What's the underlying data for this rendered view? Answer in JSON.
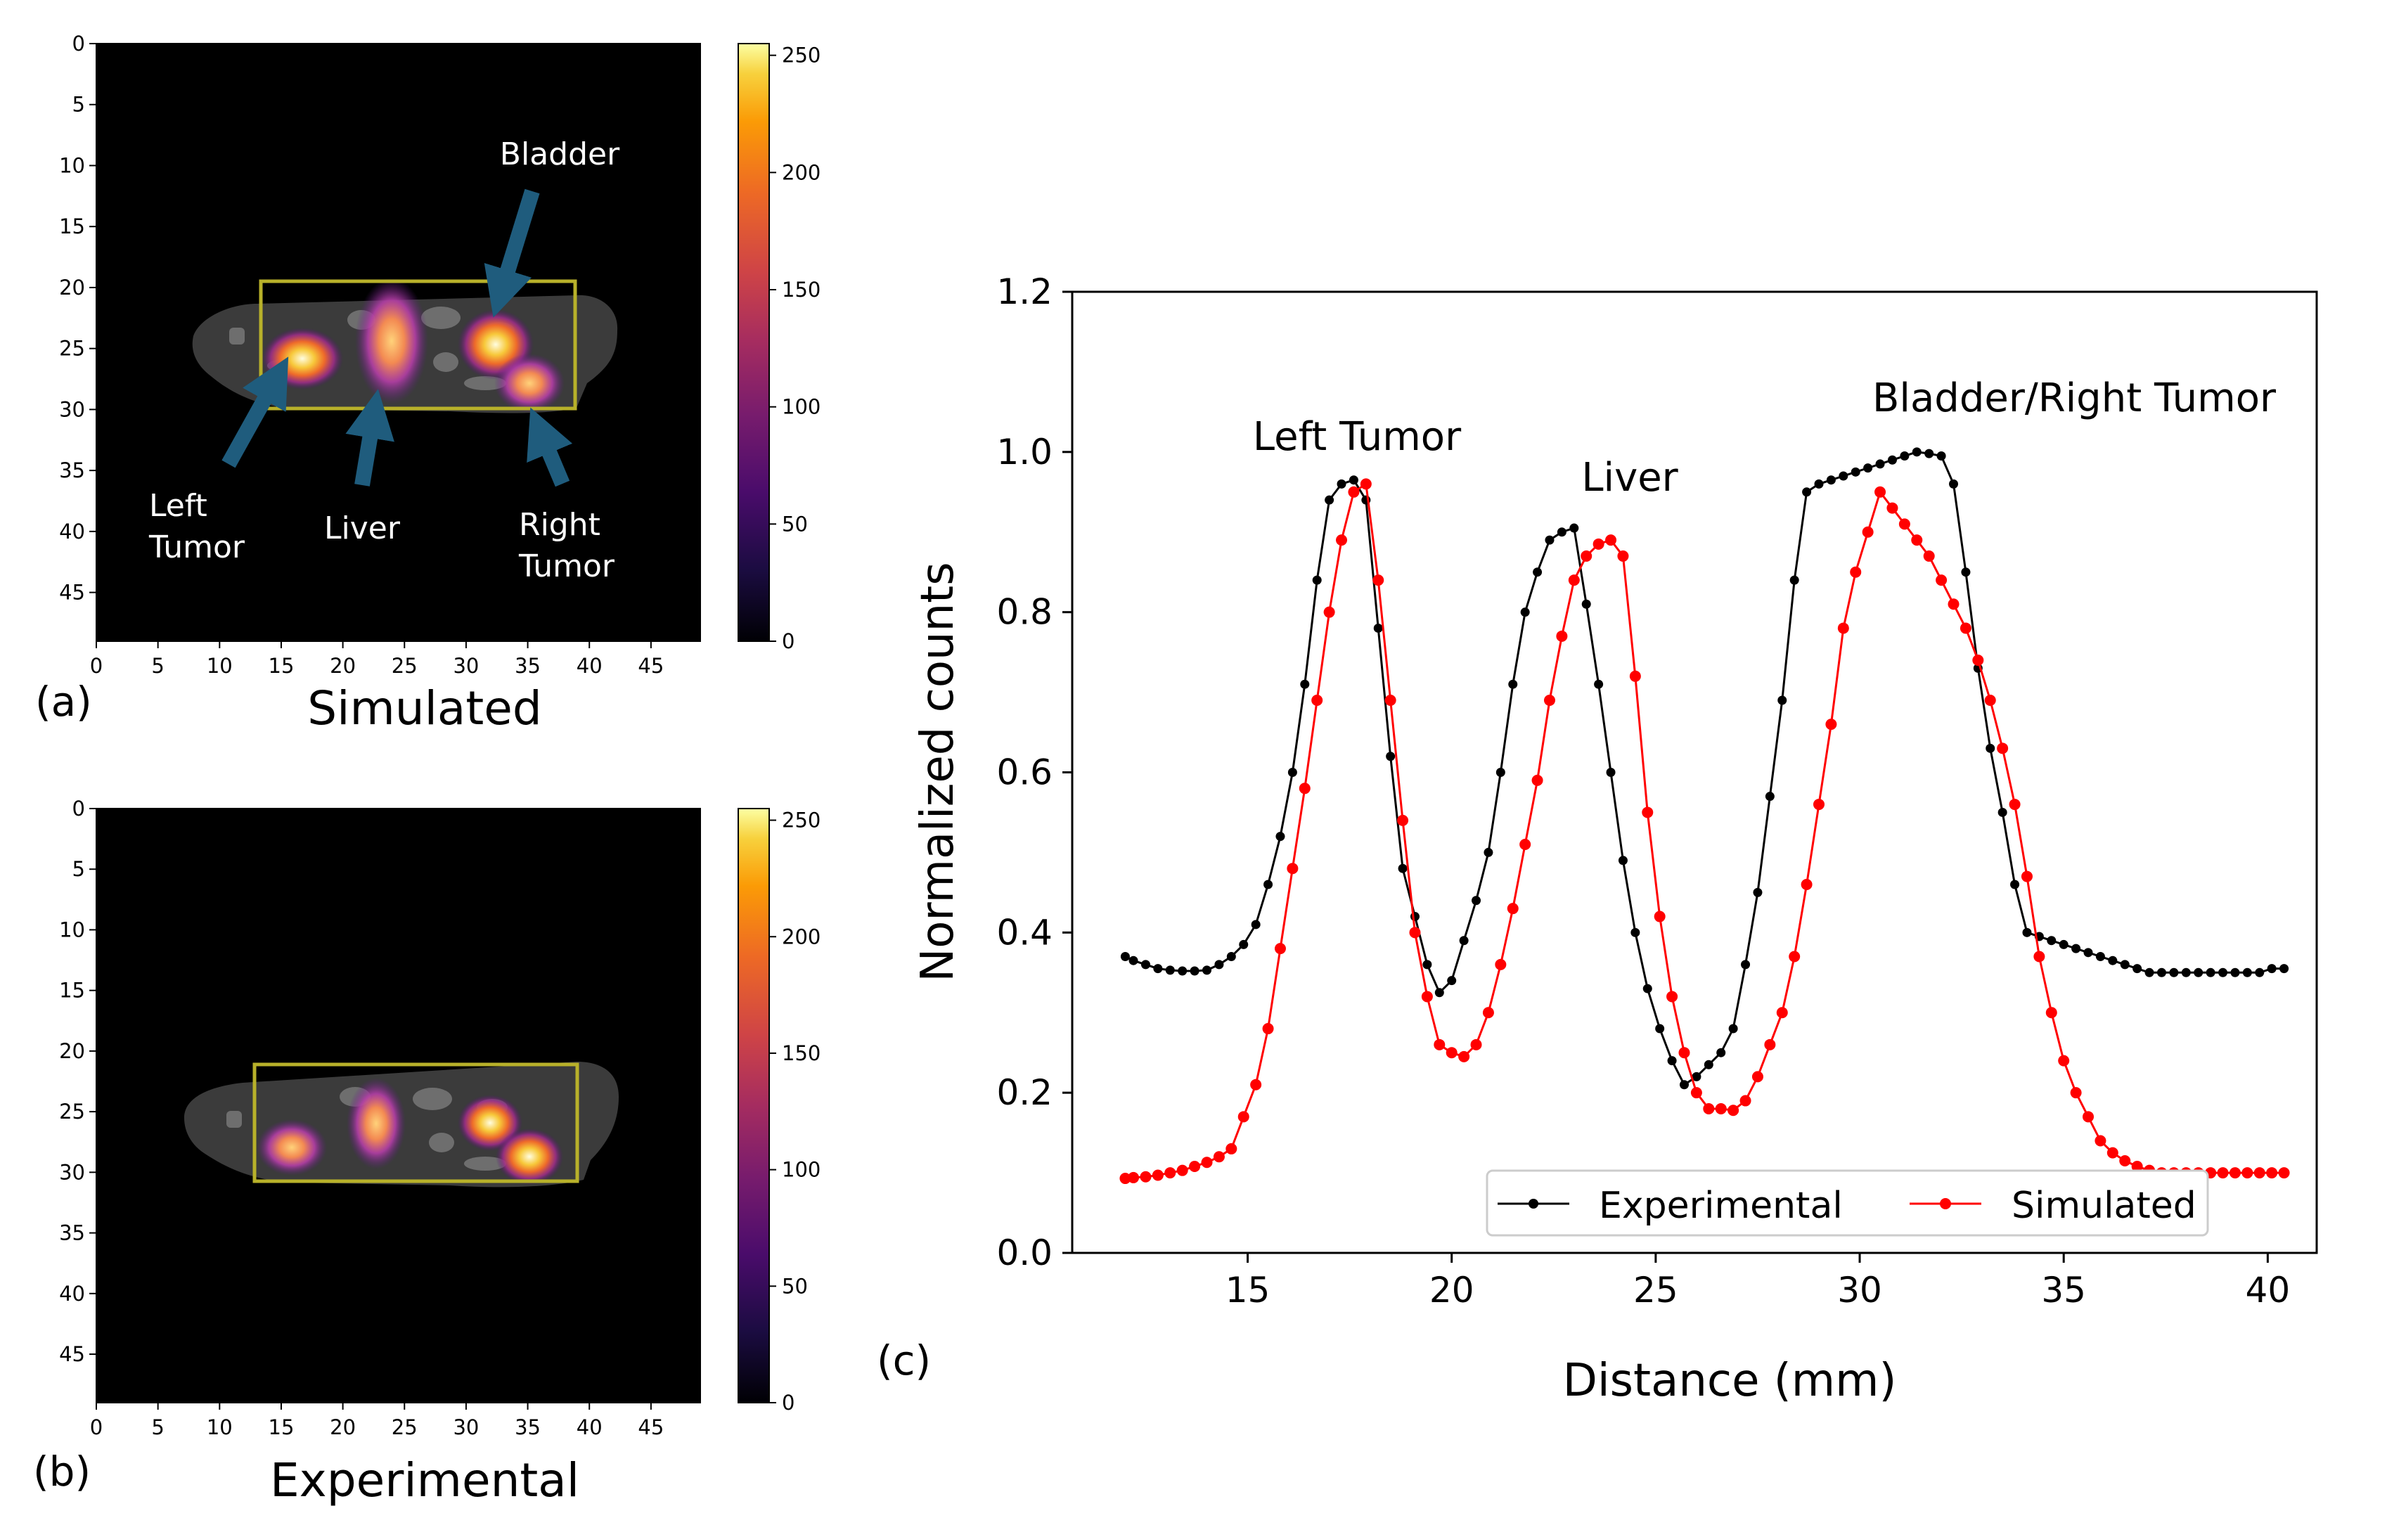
{
  "chart_data": [
    {
      "type": "heatmap",
      "panel_label": "(a)",
      "caption": "Simulated",
      "xlim": [
        0,
        49
      ],
      "ylim": [
        49,
        0
      ],
      "x_ticks": [
        0,
        5,
        10,
        15,
        20,
        25,
        30,
        35,
        40,
        45
      ],
      "y_ticks": [
        0,
        5,
        10,
        15,
        20,
        25,
        30,
        35,
        40,
        45
      ],
      "colorbar": {
        "min": 0,
        "max": 255,
        "ticks": [
          0,
          50,
          100,
          150,
          200,
          250
        ]
      },
      "roi_box": {
        "x0": 13.5,
        "y0": 19.5,
        "x1": 39.5,
        "y1": 30
      },
      "blobs": [
        {
          "name": "left-tumor",
          "x": 16.8,
          "y": 25.8,
          "intensity": 245
        },
        {
          "name": "liver",
          "x": 24.5,
          "y": 24.5,
          "intensity": 175
        },
        {
          "name": "bladder",
          "x": 32.8,
          "y": 25.0,
          "intensity": 235
        },
        {
          "name": "right-tumor",
          "x": 35.5,
          "y": 28.0,
          "intensity": 175
        }
      ],
      "annotations": [
        {
          "text": "Bladder"
        },
        {
          "line1": "Left",
          "line2": "Tumor"
        },
        {
          "text": "Liver"
        },
        {
          "line1": "Right",
          "line2": "Tumor"
        }
      ]
    },
    {
      "type": "heatmap",
      "panel_label": "(b)",
      "caption": "Experimental",
      "xlim": [
        0,
        49
      ],
      "ylim": [
        49,
        0
      ],
      "x_ticks": [
        0,
        5,
        10,
        15,
        20,
        25,
        30,
        35,
        40,
        45
      ],
      "y_ticks": [
        0,
        5,
        10,
        15,
        20,
        25,
        30,
        35,
        40,
        45
      ],
      "colorbar": {
        "min": 0,
        "max": 255,
        "ticks": [
          0,
          50,
          100,
          150,
          200,
          250
        ]
      },
      "roi_box": {
        "x0": 13,
        "y0": 21,
        "x1": 39.5,
        "y1": 30.8
      },
      "blobs": [
        {
          "name": "left-tumor",
          "x": 16,
          "y": 28.2,
          "intensity": 215
        },
        {
          "name": "liver",
          "x": 23,
          "y": 25.5,
          "intensity": 165
        },
        {
          "name": "bladder",
          "x": 32.3,
          "y": 26.0,
          "intensity": 230
        },
        {
          "name": "right-tumor",
          "x": 35.3,
          "y": 28.8,
          "intensity": 215
        }
      ]
    },
    {
      "type": "line",
      "panel_label": "(c)",
      "xlabel": "Distance (mm)",
      "ylabel": "Normalized counts",
      "xlim": [
        10.7,
        41.2
      ],
      "ylim": [
        0,
        1.2
      ],
      "x_ticks": [
        15,
        20,
        25,
        30,
        35,
        40
      ],
      "y_ticks": [
        "0.0",
        "0.2",
        "0.4",
        "0.6",
        "0.8",
        "1.0",
        "1.2"
      ],
      "grid": false,
      "legend": "bottom-center",
      "annotations": [
        "Left Tumor",
        "Liver",
        "Bladder/Right Tumor"
      ],
      "x": [
        12,
        12.2,
        12.5,
        12.8,
        13.1,
        13.4,
        13.7,
        14,
        14.3,
        14.6,
        14.9,
        15.2,
        15.5,
        15.8,
        16.1,
        16.4,
        16.7,
        17,
        17.3,
        17.6,
        17.9,
        18.2,
        18.5,
        18.8,
        19.1,
        19.4,
        19.7,
        20,
        20.3,
        20.6,
        20.9,
        21.2,
        21.5,
        21.8,
        22.1,
        22.4,
        22.7,
        23,
        23.3,
        23.6,
        23.9,
        24.2,
        24.5,
        24.8,
        25.1,
        25.4,
        25.7,
        26,
        26.3,
        26.6,
        26.9,
        27.2,
        27.5,
        27.8,
        28.1,
        28.4,
        28.7,
        29,
        29.3,
        29.6,
        29.9,
        30.2,
        30.5,
        30.8,
        31.1,
        31.4,
        31.7,
        32,
        32.3,
        32.6,
        32.9,
        33.2,
        33.5,
        33.8,
        34.1,
        34.4,
        34.7,
        35,
        35.3,
        35.6,
        35.9,
        36.2,
        36.5,
        36.8,
        37.1,
        37.4,
        37.7,
        38,
        38.3,
        38.6,
        38.9,
        39.2,
        39.5,
        39.8,
        40.1,
        40.4
      ],
      "series": [
        {
          "name": "Experimental",
          "color": "#000000",
          "values": [
            0.37,
            0.365,
            0.36,
            0.355,
            0.353,
            0.352,
            0.352,
            0.353,
            0.36,
            0.37,
            0.385,
            0.41,
            0.46,
            0.52,
            0.6,
            0.71,
            0.84,
            0.94,
            0.96,
            0.965,
            0.94,
            0.78,
            0.62,
            0.48,
            0.42,
            0.36,
            0.325,
            0.34,
            0.39,
            0.44,
            0.5,
            0.6,
            0.71,
            0.8,
            0.85,
            0.89,
            0.9,
            0.905,
            0.81,
            0.71,
            0.6,
            0.49,
            0.4,
            0.33,
            0.28,
            0.24,
            0.21,
            0.22,
            0.235,
            0.25,
            0.28,
            0.36,
            0.45,
            0.57,
            0.69,
            0.84,
            0.95,
            0.96,
            0.965,
            0.97,
            0.975,
            0.98,
            0.985,
            0.99,
            0.995,
            1.0,
            0.998,
            0.995,
            0.96,
            0.85,
            0.73,
            0.63,
            0.55,
            0.46,
            0.4,
            0.395,
            0.39,
            0.385,
            0.38,
            0.375,
            0.37,
            0.365,
            0.36,
            0.355,
            0.35,
            0.35,
            0.35,
            0.35,
            0.35,
            0.35,
            0.35,
            0.35,
            0.35,
            0.35,
            0.355,
            0.355
          ]
        },
        {
          "name": "Simulated",
          "color": "#ff0000",
          "values": [
            0.093,
            0.094,
            0.095,
            0.097,
            0.1,
            0.103,
            0.108,
            0.113,
            0.12,
            0.13,
            0.17,
            0.21,
            0.28,
            0.38,
            0.48,
            0.58,
            0.69,
            0.8,
            0.89,
            0.95,
            0.96,
            0.84,
            0.69,
            0.54,
            0.4,
            0.32,
            0.26,
            0.25,
            0.245,
            0.26,
            0.3,
            0.36,
            0.43,
            0.51,
            0.59,
            0.69,
            0.77,
            0.84,
            0.87,
            0.885,
            0.89,
            0.87,
            0.72,
            0.55,
            0.42,
            0.32,
            0.25,
            0.2,
            0.18,
            0.18,
            0.178,
            0.19,
            0.22,
            0.26,
            0.3,
            0.37,
            0.46,
            0.56,
            0.66,
            0.78,
            0.85,
            0.9,
            0.95,
            0.93,
            0.91,
            0.89,
            0.87,
            0.84,
            0.81,
            0.78,
            0.74,
            0.69,
            0.63,
            0.56,
            0.47,
            0.37,
            0.3,
            0.24,
            0.2,
            0.17,
            0.14,
            0.125,
            0.115,
            0.108,
            0.103,
            0.1,
            0.1,
            0.1,
            0.1,
            0.1,
            0.1,
            0.1,
            0.1,
            0.1,
            0.1,
            0.1
          ]
        }
      ]
    }
  ]
}
